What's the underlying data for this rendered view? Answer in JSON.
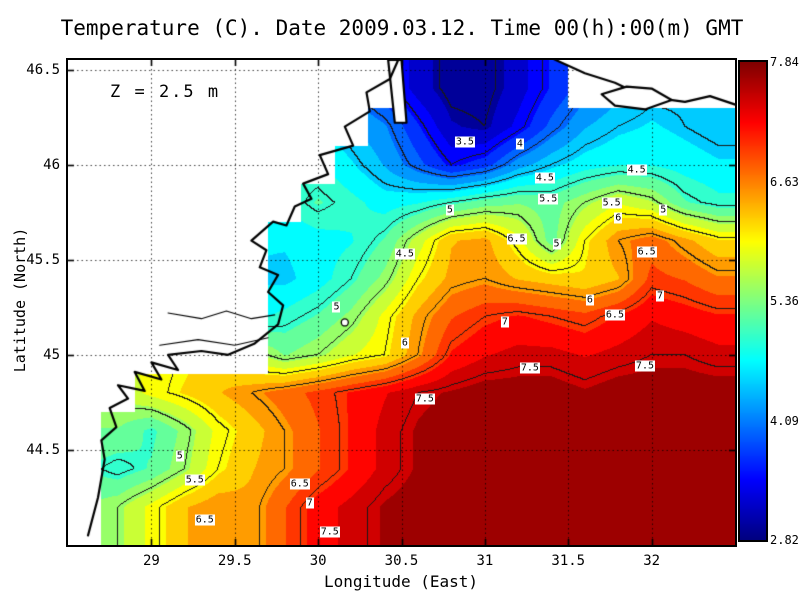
{
  "chart_data": {
    "type": "heatmap",
    "title": "Temperature (C). Date 2009.03.12. Time 00(h):00(m) GMT",
    "annotation": "Z = 2.5 m",
    "xlabel": "Longitude (East)",
    "ylabel": "Latitude (North)",
    "xlim": [
      28.5,
      32.5
    ],
    "ylim": [
      44.0,
      46.55
    ],
    "xticks": [
      29,
      29.5,
      30,
      30.5,
      31,
      31.5,
      32
    ],
    "yticks": [
      44.5,
      45,
      45.5,
      46,
      46.5
    ],
    "grid": "dotted",
    "units": "C",
    "contour_interval": 0.5,
    "contour_levels": [
      3,
      3.5,
      4,
      4.5,
      5,
      5.5,
      6,
      6.5,
      7,
      7.5
    ],
    "colorbar": {
      "vmin": 2.82,
      "vmax": 7.84,
      "tick_labels": [
        "7.84",
        "6.63",
        "5.36",
        "4.09",
        "2.82"
      ],
      "colormap": [
        [
          0,
          "#000080"
        ],
        [
          0.125,
          "#0000ff"
        ],
        [
          0.375,
          "#00ffff"
        ],
        [
          0.625,
          "#ffff00"
        ],
        [
          0.875,
          "#ff0000"
        ],
        [
          1,
          "#800000"
        ]
      ]
    },
    "grid_lons": [
      28.6,
      28.8,
      29.0,
      29.2,
      29.4,
      29.6,
      29.8,
      30.0,
      30.2,
      30.4,
      30.6,
      30.8,
      31.0,
      31.2,
      31.4,
      31.6,
      31.8,
      32.0,
      32.2,
      32.4
    ],
    "grid_lats": [
      46.4,
      46.2,
      46.0,
      45.8,
      45.6,
      45.4,
      45.2,
      45.0,
      44.8,
      44.6,
      44.4,
      44.2
    ],
    "temperature_grid": [
      [
        null,
        null,
        null,
        null,
        null,
        null,
        null,
        null,
        null,
        null,
        3.2,
        2.9,
        2.9,
        3.2,
        3.6,
        null,
        null,
        null,
        null,
        null
      ],
      [
        null,
        null,
        null,
        null,
        null,
        null,
        null,
        null,
        null,
        4.1,
        3.6,
        3.1,
        3.0,
        3.4,
        3.9,
        4.3,
        4.5,
        4.6,
        4.5,
        4.4
      ],
      [
        null,
        null,
        null,
        null,
        null,
        null,
        null,
        null,
        4.6,
        4.3,
        3.9,
        3.5,
        3.7,
        4.2,
        4.5,
        4.7,
        4.8,
        4.8,
        4.7,
        4.6
      ],
      [
        null,
        null,
        null,
        null,
        null,
        null,
        null,
        5.1,
        4.9,
        4.7,
        4.8,
        5.0,
        5.2,
        5.3,
        5.2,
        5.5,
        5.8,
        5.6,
        5.1,
        4.9
      ],
      [
        null,
        null,
        null,
        null,
        null,
        null,
        4.6,
        4.7,
        4.8,
        5.1,
        5.7,
        6.3,
        6.4,
        5.9,
        5.2,
        6.0,
        6.5,
        6.7,
        6.4,
        6.1
      ],
      [
        null,
        null,
        null,
        null,
        null,
        null,
        4.5,
        4.7,
        5.0,
        5.4,
        6.0,
        6.4,
        6.5,
        6.3,
        6.2,
        6.1,
        6.3,
        6.9,
        6.8,
        6.6
      ],
      [
        null,
        null,
        null,
        null,
        null,
        null,
        4.9,
        5.1,
        5.4,
        5.9,
        6.4,
        6.8,
        7.0,
        7.1,
        7.0,
        6.9,
        7.1,
        7.3,
        7.2,
        7.1
      ],
      [
        null,
        null,
        null,
        null,
        null,
        null,
        5.3,
        5.5,
        5.8,
        6.0,
        6.5,
        7.1,
        7.3,
        7.4,
        7.4,
        7.3,
        7.4,
        7.5,
        7.5,
        7.4
      ],
      [
        null,
        null,
        5.9,
        6.1,
        6.3,
        6.5,
        6.7,
        6.9,
        7.1,
        7.3,
        7.5,
        7.6,
        7.7,
        7.7,
        7.7,
        7.6,
        7.7,
        7.7,
        7.7,
        7.7
      ],
      [
        null,
        5.3,
        5.0,
        5.4,
        5.9,
        6.2,
        6.5,
        6.8,
        7.1,
        7.4,
        7.6,
        7.7,
        7.8,
        7.8,
        7.8,
        7.7,
        7.8,
        7.8,
        7.8,
        7.8
      ],
      [
        null,
        4.9,
        5.1,
        5.5,
        6.0,
        6.3,
        6.5,
        6.8,
        7.1,
        7.4,
        7.6,
        7.7,
        7.8,
        7.8,
        7.8,
        7.8,
        7.8,
        7.8,
        7.8,
        7.8
      ],
      [
        null,
        5.5,
        5.9,
        6.3,
        6.5,
        6.4,
        6.8,
        7.2,
        7.4,
        7.6,
        7.7,
        7.8,
        7.8,
        7.8,
        7.8,
        7.8,
        7.8,
        7.8,
        7.8,
        7.8
      ]
    ],
    "contour_labels": [
      {
        "t": "3.5",
        "lon": 30.88,
        "lat": 46.12
      },
      {
        "t": "4",
        "lon": 31.21,
        "lat": 46.11
      },
      {
        "t": "4.5",
        "lon": 31.36,
        "lat": 45.93
      },
      {
        "t": "4.5",
        "lon": 31.91,
        "lat": 45.97
      },
      {
        "t": "5.5",
        "lon": 31.38,
        "lat": 45.82
      },
      {
        "t": "5",
        "lon": 30.79,
        "lat": 45.76
      },
      {
        "t": "5.5",
        "lon": 31.76,
        "lat": 45.8
      },
      {
        "t": "6",
        "lon": 31.8,
        "lat": 45.72
      },
      {
        "t": "5",
        "lon": 32.07,
        "lat": 45.76
      },
      {
        "t": "6.5",
        "lon": 31.19,
        "lat": 45.61
      },
      {
        "t": "5",
        "lon": 31.43,
        "lat": 45.58
      },
      {
        "t": "6.5",
        "lon": 31.97,
        "lat": 45.54
      },
      {
        "t": "4.5",
        "lon": 30.52,
        "lat": 45.53
      },
      {
        "t": "5",
        "lon": 30.11,
        "lat": 45.25
      },
      {
        "t": "6",
        "lon": 31.63,
        "lat": 45.29
      },
      {
        "t": "7",
        "lon": 32.05,
        "lat": 45.31
      },
      {
        "t": "6.5",
        "lon": 31.78,
        "lat": 45.21
      },
      {
        "t": "7",
        "lon": 31.12,
        "lat": 45.17
      },
      {
        "t": "6",
        "lon": 30.52,
        "lat": 45.06
      },
      {
        "t": "7.5",
        "lon": 31.27,
        "lat": 44.93
      },
      {
        "t": "7.5",
        "lon": 31.96,
        "lat": 44.94
      },
      {
        "t": "7.5",
        "lon": 30.64,
        "lat": 44.77
      },
      {
        "t": "5",
        "lon": 29.17,
        "lat": 44.47
      },
      {
        "t": "5.5",
        "lon": 29.26,
        "lat": 44.34
      },
      {
        "t": "6.5",
        "lon": 29.89,
        "lat": 44.32
      },
      {
        "t": "7",
        "lon": 29.95,
        "lat": 44.22
      },
      {
        "t": "6.5",
        "lon": 29.32,
        "lat": 44.13
      },
      {
        "t": "7.5",
        "lon": 30.07,
        "lat": 44.07
      }
    ],
    "coastlines": [
      [
        [
          28.62,
          44.05
        ],
        [
          28.68,
          44.25
        ],
        [
          28.72,
          44.45
        ],
        [
          28.7,
          44.55
        ],
        [
          28.79,
          44.62
        ],
        [
          28.75,
          44.72
        ],
        [
          28.86,
          44.77
        ],
        [
          28.8,
          44.84
        ],
        [
          28.96,
          44.81
        ],
        [
          28.9,
          44.91
        ],
        [
          29.06,
          44.87
        ],
        [
          29.0,
          44.96
        ],
        [
          29.16,
          44.92
        ],
        [
          29.1,
          45.0
        ],
        [
          29.3,
          45.02
        ],
        [
          29.46,
          45.0
        ],
        [
          29.62,
          45.06
        ],
        [
          29.76,
          45.16
        ],
        [
          29.79,
          45.26
        ],
        [
          29.7,
          45.33
        ],
        [
          29.76,
          45.42
        ],
        [
          29.65,
          45.46
        ],
        [
          29.69,
          45.55
        ],
        [
          29.6,
          45.6
        ],
        [
          29.73,
          45.7
        ],
        [
          29.81,
          45.68
        ],
        [
          29.86,
          45.78
        ],
        [
          29.96,
          45.82
        ],
        [
          29.91,
          45.9
        ],
        [
          30.06,
          45.95
        ],
        [
          30.01,
          46.05
        ],
        [
          30.21,
          46.1
        ],
        [
          30.16,
          46.2
        ],
        [
          30.31,
          46.28
        ],
        [
          30.29,
          46.38
        ],
        [
          30.43,
          46.45
        ],
        [
          30.48,
          46.55
        ]
      ]
    ],
    "rivers": [
      [
        [
          29.1,
          45.22
        ],
        [
          29.3,
          45.19
        ],
        [
          29.45,
          45.23
        ],
        [
          29.6,
          45.19
        ],
        [
          29.74,
          45.21
        ]
      ],
      [
        [
          29.05,
          45.05
        ],
        [
          29.28,
          45.08
        ],
        [
          29.5,
          45.05
        ],
        [
          29.7,
          45.09
        ]
      ]
    ],
    "land_polygons": [
      [
        [
          31.4,
          46.56
        ],
        [
          31.6,
          46.48
        ],
        [
          31.78,
          46.43
        ],
        [
          31.95,
          46.36
        ],
        [
          32.2,
          46.33
        ],
        [
          32.35,
          46.36
        ],
        [
          32.52,
          46.31
        ],
        [
          32.52,
          46.56
        ]
      ],
      [
        [
          31.7,
          46.37
        ],
        [
          31.85,
          46.41
        ],
        [
          32.0,
          46.4
        ],
        [
          32.12,
          46.34
        ],
        [
          31.96,
          46.29
        ],
        [
          31.78,
          46.31
        ]
      ],
      [
        [
          30.42,
          46.55
        ],
        [
          30.5,
          46.55
        ],
        [
          30.53,
          46.22
        ],
        [
          30.46,
          46.22
        ]
      ]
    ],
    "markers": [
      {
        "lon": 30.16,
        "lat": 45.17,
        "r": 3.5
      }
    ]
  }
}
